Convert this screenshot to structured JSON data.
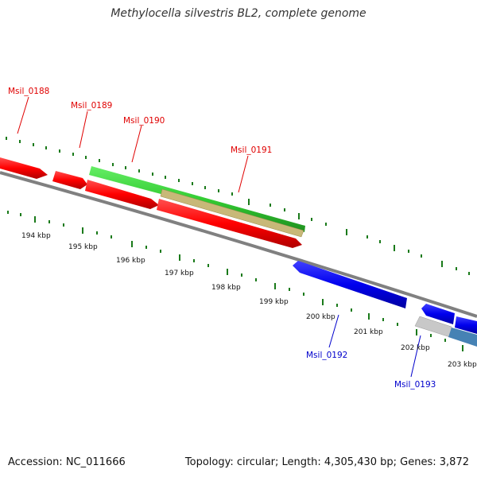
{
  "title": "Methylocella silvestris BL2, complete genome",
  "accession": "Accession: NC_011666",
  "topology": "Topology: circular; Length: 4,305,430 bp; Genes: 3,872",
  "kbp_labels": [
    "194 kbp",
    "195 kbp",
    "196 kbp",
    "197 kbp",
    "198 kbp",
    "199 kbp",
    "200 kbp",
    "201 kbp",
    "202 kbp",
    "203 kbp"
  ],
  "genes": {
    "g188": "Msil_0188",
    "g189": "Msil_0189",
    "g190": "Msil_0190",
    "g191": "Msil_0191",
    "g192": "Msil_0192",
    "g193": "Msil_0193"
  },
  "colors": {
    "forward_strand": "#ff0000",
    "reverse_strand": "#0000ee",
    "rna": "#33cc33",
    "tan": "#c8b878",
    "grey_feature": "#c8c8c8",
    "steel_feature": "#4682b4",
    "backbone": "#808080",
    "tick": "#1a7a1a"
  }
}
